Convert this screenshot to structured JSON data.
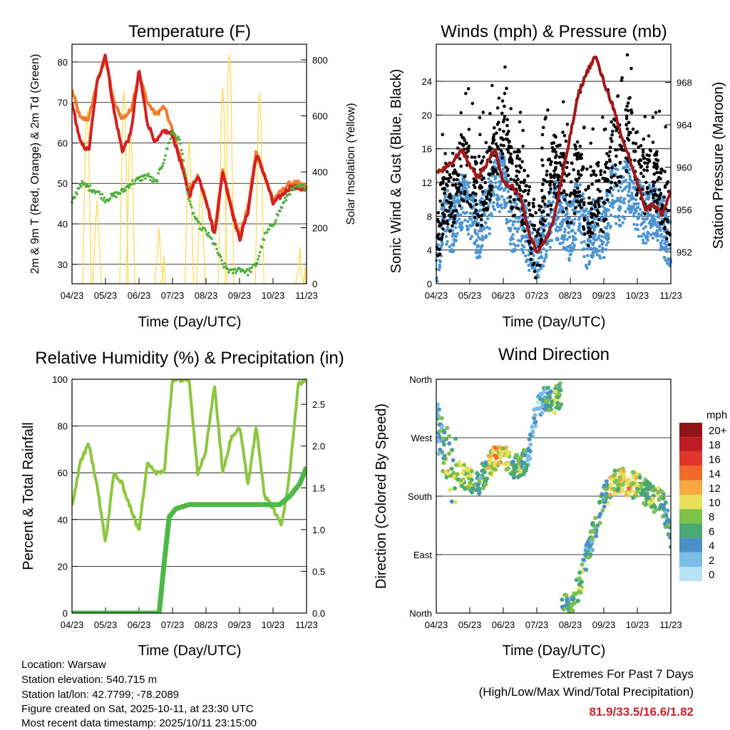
{
  "colors": {
    "temp_2m": "#d42020",
    "temp_9m": "#f47a2a",
    "dewpoint": "#4caf3a",
    "solar": "#ffd84a",
    "sonic": "#4d94d0",
    "gust": "#000000",
    "pressure": "#a01818",
    "rh": "#8cc63f",
    "rain": "#4cb848"
  },
  "chart_data": [
    {
      "type": "line",
      "title": "Temperature (F)",
      "xlabel": "Time (Day/UTC)",
      "ylabel": "2m & 9m T (Red, Orange) & 2m Td (Green)",
      "ylabel_right": "Solar Insolation (Yellow)",
      "x_ticks": [
        "04/23",
        "05/23",
        "06/23",
        "07/23",
        "08/23",
        "09/23",
        "10/23",
        "11/23"
      ],
      "y_ticks": [
        "30",
        "40",
        "50",
        "60",
        "70",
        "80"
      ],
      "y_ticks_right": [
        "0",
        "200",
        "400",
        "600",
        "800"
      ],
      "ylim": [
        25.2,
        84.4
      ],
      "ylim_right": [
        0,
        856
      ],
      "x_step": 0.25,
      "series": [
        {
          "name": "2m T",
          "values": [
            70,
            60,
            58,
            75,
            82,
            68,
            58,
            62,
            78,
            65,
            60,
            63,
            62,
            55,
            47,
            52,
            46,
            37,
            53,
            44,
            36,
            43,
            57,
            52,
            45,
            47,
            49,
            49,
            48
          ]
        },
        {
          "name": "9m T",
          "values": [
            73,
            66,
            66,
            75,
            81,
            70,
            66,
            68,
            77,
            70,
            67,
            69,
            63,
            56,
            48,
            52,
            46,
            38,
            53,
            45,
            37,
            44,
            58,
            52,
            46,
            48,
            50,
            50,
            49
          ]
        },
        {
          "name": "2m Td",
          "values": [
            45,
            50,
            49,
            48,
            46,
            47,
            48,
            50,
            51,
            52,
            50,
            56,
            63,
            60,
            45,
            40,
            38,
            35,
            30,
            28,
            29,
            28,
            30,
            37,
            40,
            44,
            48,
            49,
            49
          ]
        }
      ],
      "solar_peaks": [
        [
          0.45,
          620
        ],
        [
          0.75,
          300
        ],
        [
          1.55,
          690
        ],
        [
          1.75,
          560
        ],
        [
          2.6,
          200
        ],
        [
          2.75,
          100
        ],
        [
          3.5,
          510
        ],
        [
          3.85,
          360
        ],
        [
          4.5,
          700
        ],
        [
          4.7,
          820
        ],
        [
          5.6,
          680
        ],
        [
          6.8,
          130
        ],
        [
          6.95,
          60
        ]
      ]
    },
    {
      "type": "scatter",
      "title": "Winds (mph) & Pressure (mb)",
      "xlabel": "Time (Day/UTC)",
      "ylabel": "Sonic Wind & Gust (Blue, Black)",
      "ylabel_right": "Station Pressure (Maroon)",
      "x_ticks": [
        "04/23",
        "05/23",
        "06/23",
        "07/23",
        "08/23",
        "09/23",
        "10/23",
        "11/23"
      ],
      "y_ticks": [
        "0",
        "4",
        "8",
        "12",
        "16",
        "20",
        "24"
      ],
      "y_ticks_right": [
        "952",
        "956",
        "960",
        "964",
        "968"
      ],
      "ylim": [
        0,
        28.4
      ],
      "ylim_right": [
        949,
        971.6
      ],
      "x_step": 0.25,
      "series": [
        {
          "name": "Sonic Wind",
          "values": [
            3,
            8,
            7,
            10,
            9,
            6,
            8,
            12,
            12,
            7,
            8,
            5,
            3,
            6,
            9,
            8,
            6,
            10,
            5,
            7,
            6,
            11,
            10,
            12,
            9,
            8,
            9,
            7,
            5
          ]
        },
        {
          "name": "Gust",
          "values": [
            4,
            10,
            10,
            14,
            13,
            10,
            12,
            16,
            19,
            12,
            12,
            8,
            4,
            10,
            14,
            12,
            10,
            14,
            8,
            11,
            10,
            16,
            15,
            18,
            14,
            12,
            13,
            10,
            8
          ]
        },
        {
          "name": "Pressure",
          "values": [
            959.5,
            959.8,
            960.5,
            961.7,
            960.2,
            959,
            960.3,
            961.8,
            958.5,
            958.2,
            957.5,
            954,
            952,
            953,
            955,
            959,
            963,
            967,
            969,
            970.5,
            968,
            966,
            963,
            961,
            958.5,
            956,
            956.5,
            955.5,
            957.8
          ]
        }
      ]
    },
    {
      "type": "line",
      "title": "Relative Humidity (%) & Precipitation (in)",
      "xlabel": "Time (Day/UTC)",
      "ylabel": "Percent & Total Rainfall",
      "x_ticks": [
        "04/23",
        "05/23",
        "06/23",
        "07/23",
        "08/23",
        "09/23",
        "10/23",
        "11/23"
      ],
      "y_ticks": [
        "0",
        "20",
        "40",
        "60",
        "80",
        "100"
      ],
      "y_ticks_right": [
        "0.0",
        "0.5",
        "1.0",
        "1.5",
        "2.0",
        "2.5"
      ],
      "ylim": [
        0,
        100
      ],
      "ylim_right": [
        0,
        2.8
      ],
      "x_step": 0.25,
      "series": [
        {
          "name": "Relative Humidity",
          "values": [
            45,
            65,
            72,
            55,
            30,
            60,
            55,
            45,
            35,
            65,
            60,
            60,
            100,
            100,
            100,
            60,
            70,
            98,
            60,
            75,
            80,
            55,
            80,
            50,
            45,
            37,
            60,
            98,
            100
          ]
        },
        {
          "name": "Total Rainfall",
          "points": [
            [
              0,
              0
            ],
            [
              2.6,
              0
            ],
            [
              2.75,
              0.6
            ],
            [
              2.9,
              1.15
            ],
            [
              3.1,
              1.25
            ],
            [
              3.5,
              1.3
            ],
            [
              6.2,
              1.3
            ],
            [
              6.5,
              1.4
            ],
            [
              6.8,
              1.55
            ],
            [
              7,
              1.75
            ]
          ]
        }
      ]
    },
    {
      "type": "scatter",
      "title": "Wind Direction",
      "xlabel": "Time (Day/UTC)",
      "ylabel": "Direction (Colored By Speed)",
      "x_ticks": [
        "04/23",
        "05/23",
        "06/23",
        "07/23",
        "08/23",
        "09/23",
        "10/23",
        "11/23"
      ],
      "y_ticks": [
        "North",
        "East",
        "South",
        "West",
        "North"
      ],
      "ylim": [
        0,
        360
      ],
      "x_step": 0.25,
      "direction": [
        290,
        250,
        215,
        215,
        205,
        200,
        220,
        240,
        240,
        225,
        225,
        240,
        320,
        330,
        325,
        340,
        15,
        40,
        90,
        135,
        175,
        200,
        205,
        200,
        195,
        185,
        175,
        170,
        120
      ],
      "legend": {
        "title": "mph",
        "labels": [
          "20+",
          "18",
          "16",
          "14",
          "12",
          "10",
          "8",
          "6",
          "4",
          "2",
          "0"
        ],
        "colors": [
          "#8f1518",
          "#c01c24",
          "#e0352a",
          "#f26a2a",
          "#f7a843",
          "#e8e05a",
          "#7dc24a",
          "#4aa872",
          "#4a8fc8",
          "#7cbde6",
          "#b8e3f7"
        ]
      }
    }
  ],
  "info": {
    "location": "Location: Warsaw",
    "elevation": "Station elevation: 540.715 m",
    "latlon": "Station lat/lon: 42.7799; -78.2089",
    "created": "Figure created on Sat, 2025-10-11, at 23:30 UTC",
    "timestamp": "Most recent data timestamp: 2025/10/11 23:15:00"
  },
  "extremes": {
    "title": "Extremes For Past 7 Days",
    "subtitle": "(High/Low/Max Wind/Total Precipitation)",
    "values": "81.9/33.5/16.6/1.82"
  }
}
